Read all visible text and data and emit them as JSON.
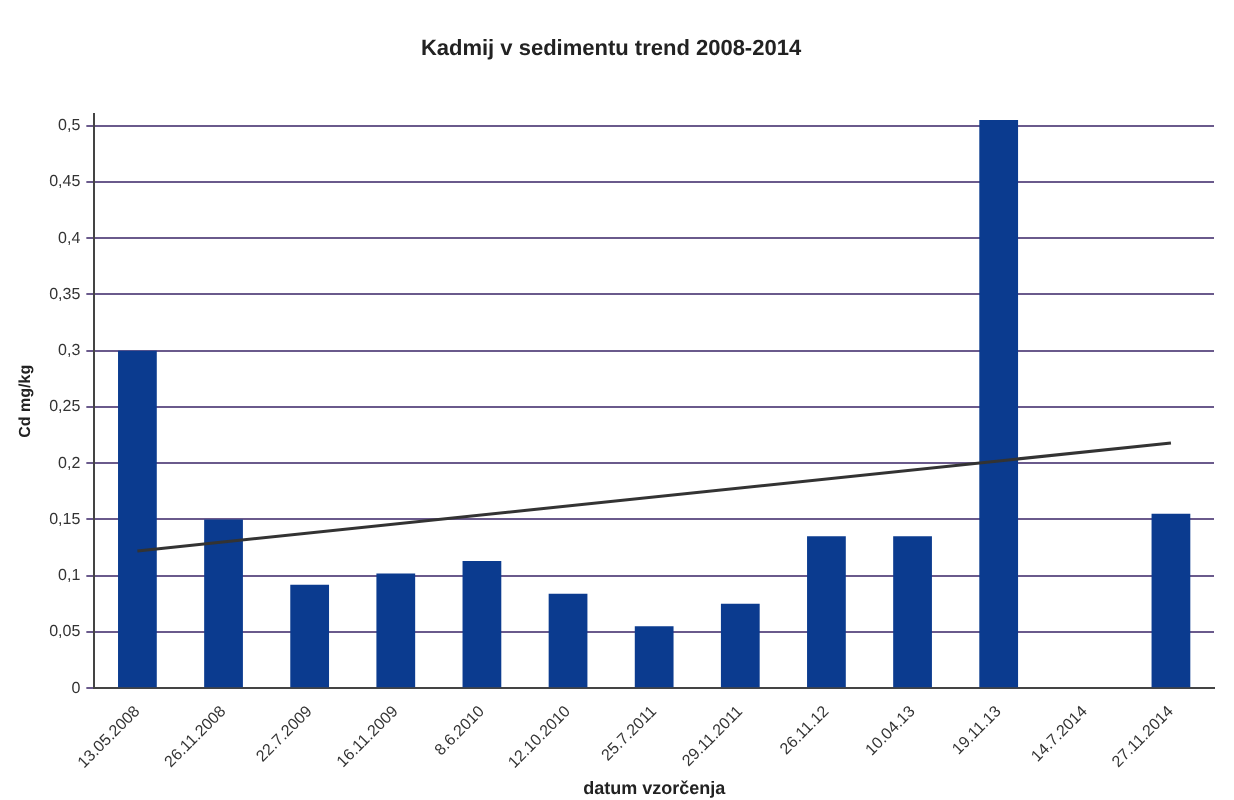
{
  "chart_data": {
    "type": "bar",
    "title": "Kadmij v sedimentu trend 2008-2014",
    "xlabel": "datum vzorčenja",
    "ylabel": "Cd mg/kg",
    "categories": [
      "13.05.2008",
      "26.11.2008",
      "22.7.2009",
      "16.11.2009",
      "8.6.2010",
      "12.10.2010",
      "25.7.2011",
      "29.11.2011",
      "26.11.12",
      "10.04.13",
      "19.11.13",
      "14.7.2014",
      "27.11.2014"
    ],
    "series": [
      {
        "color": "#0b3b8f",
        "values": [
          0.3,
          0.15,
          0.092,
          0.102,
          0.113,
          0.084,
          0.055,
          0.075,
          0.135,
          0.135,
          0.505,
          null,
          0.155
        ]
      },
      {
        "type": "line",
        "color": "#333333",
        "x": [
          "13.05.2008",
          "27.11.2014"
        ],
        "values": [
          0.122,
          0.218
        ]
      }
    ],
    "ylim": [
      0,
      0.51
    ],
    "yticks": [
      0,
      {
        "value": 0.05,
        "label": "0,05"
      },
      {
        "value": 0.1,
        "label": "0,1"
      },
      {
        "value": 0.15,
        "label": "0,15"
      },
      {
        "value": 0.2,
        "label": "0,2"
      },
      {
        "value": 0.25,
        "label": "0,25"
      },
      {
        "value": 0.3,
        "label": "0,3"
      },
      {
        "value": 0.35,
        "label": "0,35"
      },
      {
        "value": 0.4,
        "label": "0,4"
      },
      {
        "value": 0.45,
        "label": "0,45"
      },
      {
        "value": 0.5,
        "label": "0,5"
      }
    ],
    "grid": "y",
    "legend": false,
    "marker": "none"
  }
}
